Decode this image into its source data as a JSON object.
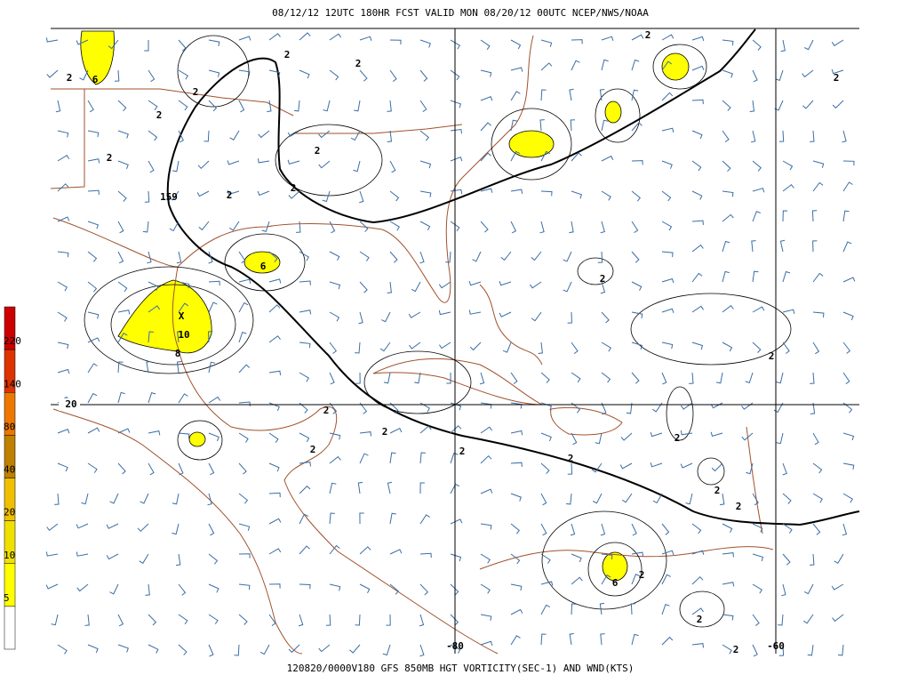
{
  "header": {
    "title": "08/12/12 12UTC  180HR  FCST VALID MON 08/20/12 00UTC  NCEP/NWS/NOAA"
  },
  "footer": {
    "caption": "120820/0000V180 GFS 850MB HGT VORTICITY(SEC-1) AND WND(KTS)"
  },
  "colorbar": {
    "labels": [
      "220",
      "140",
      "80",
      "40",
      "20",
      "10",
      "5"
    ],
    "colors": [
      "#cc0000",
      "#dd3300",
      "#ee7700",
      "#c08000",
      "#f0c000",
      "#f0e000",
      "#ffff00",
      "#ffffff"
    ]
  },
  "map": {
    "grid_labels": [
      "20",
      "-80",
      "-60"
    ],
    "contour_labels": [
      "2",
      "6",
      "2",
      "2",
      "2",
      "2",
      "2",
      "2",
      "2",
      "2",
      "159",
      "2",
      "2",
      "6",
      "2",
      "X",
      "10",
      "8",
      "2",
      "2",
      "2",
      "2",
      "2",
      "2",
      "2",
      "2",
      "2",
      "6",
      "2",
      "2",
      "2"
    ]
  }
}
